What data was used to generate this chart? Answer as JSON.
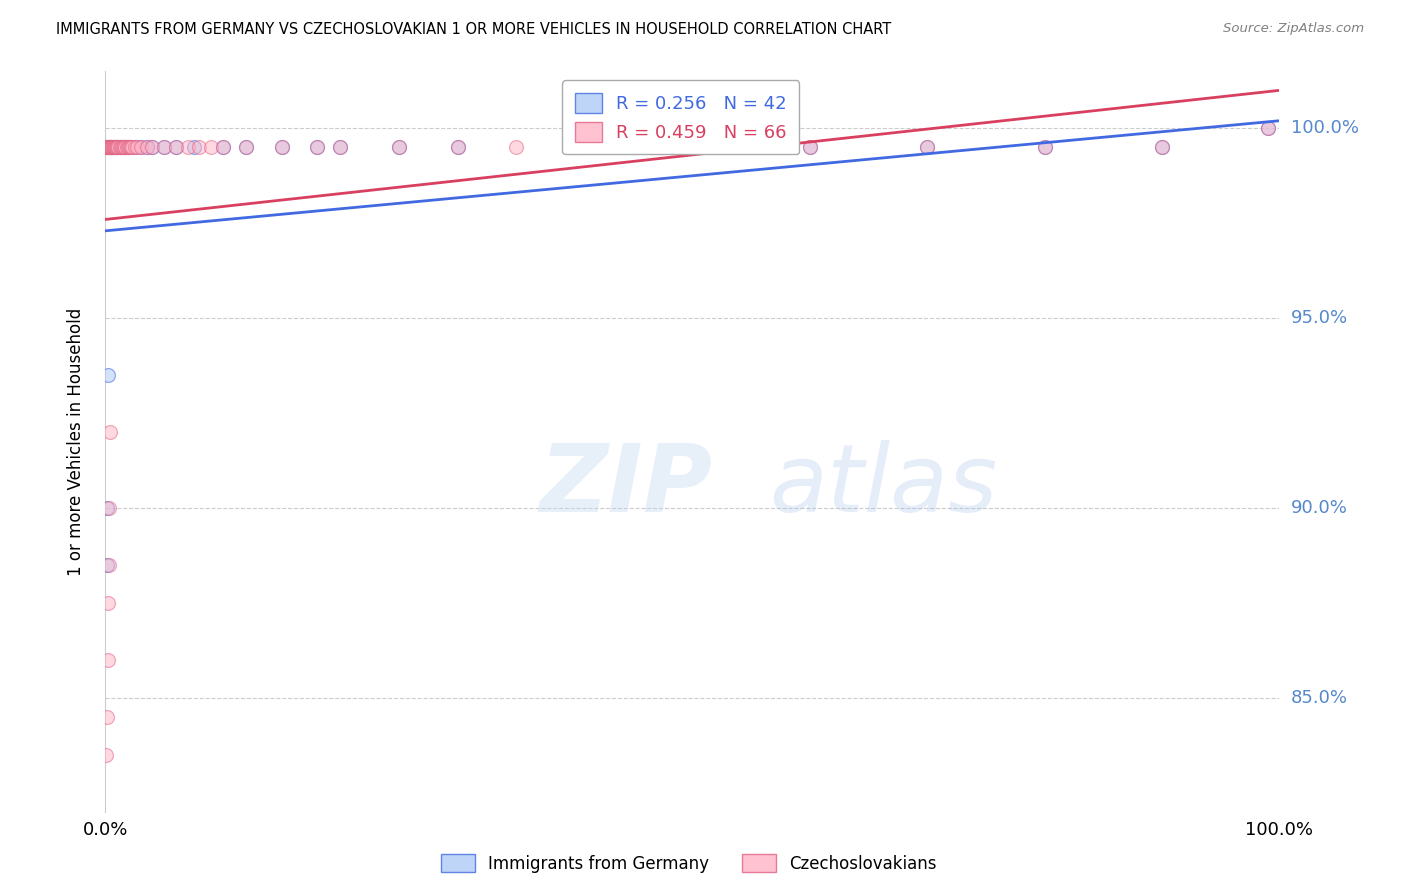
{
  "title": "IMMIGRANTS FROM GERMANY VS CZECHOSLOVAKIAN 1 OR MORE VEHICLES IN HOUSEHOLD CORRELATION CHART",
  "source_text": "Source: ZipAtlas.com",
  "ylabel": "1 or more Vehicles in Household",
  "xmin": 0.0,
  "xmax": 100.0,
  "ymin": 82.0,
  "ymax": 101.5,
  "yticks": [
    85,
    90,
    95,
    100
  ],
  "ytick_labels": [
    "85.0%",
    "90.0%",
    "95.0%",
    "100.0%"
  ],
  "legend_blue_R": "R = 0.256",
  "legend_blue_N": "N = 42",
  "legend_pink_R": "R = 0.459",
  "legend_pink_N": "N = 66",
  "legend_blue_label": "Immigrants from Germany",
  "legend_pink_label": "Czechoslovakians",
  "blue_scatter_color": "#AECBF5",
  "blue_edge_color": "#4169E1",
  "pink_scatter_color": "#FFB3C6",
  "pink_edge_color": "#E06080",
  "trendline_blue": "#4169E1",
  "trendline_pink": "#D94060",
  "axis_label_color": "#5588CC",
  "grid_color": "#cccccc",
  "blue_x": [
    0.2,
    0.3,
    0.4,
    0.5,
    0.6,
    0.7,
    0.8,
    0.9,
    1.0,
    1.1,
    1.2,
    1.3,
    1.4,
    1.5,
    1.6,
    1.7,
    1.8,
    2.0,
    2.5,
    3.0,
    3.5,
    4.0,
    5.0,
    6.0,
    7.5,
    10.0,
    12.0,
    15.0,
    18.0,
    20.0,
    25.0,
    30.0,
    40.0,
    50.0,
    60.0,
    70.0,
    80.0,
    90.0,
    99.0,
    0.1,
    0.15,
    0.25
  ],
  "blue_y": [
    99.5,
    99.5,
    99.5,
    99.5,
    99.5,
    99.5,
    99.5,
    99.5,
    99.5,
    99.5,
    99.5,
    99.5,
    99.5,
    99.5,
    99.5,
    99.5,
    99.5,
    99.5,
    99.5,
    99.5,
    99.5,
    99.5,
    99.5,
    99.5,
    99.5,
    99.5,
    99.5,
    99.5,
    99.5,
    99.5,
    99.5,
    99.5,
    99.5,
    99.5,
    99.5,
    99.5,
    99.5,
    99.5,
    100.0,
    88.5,
    90.0,
    93.5
  ],
  "pink_x": [
    0.05,
    0.1,
    0.15,
    0.2,
    0.25,
    0.3,
    0.35,
    0.4,
    0.45,
    0.5,
    0.55,
    0.6,
    0.65,
    0.7,
    0.75,
    0.8,
    0.85,
    0.9,
    0.95,
    1.0,
    1.1,
    1.2,
    1.3,
    1.4,
    1.5,
    1.6,
    1.7,
    1.8,
    1.9,
    2.0,
    2.1,
    2.2,
    2.3,
    2.5,
    2.7,
    3.0,
    3.5,
    4.0,
    5.0,
    6.0,
    7.0,
    8.0,
    9.0,
    10.0,
    12.0,
    15.0,
    18.0,
    20.0,
    25.0,
    30.0,
    35.0,
    40.0,
    45.0,
    50.0,
    60.0,
    70.0,
    80.0,
    90.0,
    99.0,
    0.08,
    0.12,
    0.18,
    0.22,
    0.28,
    0.32,
    0.38
  ],
  "pink_y": [
    99.5,
    99.5,
    99.5,
    99.5,
    99.5,
    99.5,
    99.5,
    99.5,
    99.5,
    99.5,
    99.5,
    99.5,
    99.5,
    99.5,
    99.5,
    99.5,
    99.5,
    99.5,
    99.5,
    99.5,
    99.5,
    99.5,
    99.5,
    99.5,
    99.5,
    99.5,
    99.5,
    99.5,
    99.5,
    99.5,
    99.5,
    99.5,
    99.5,
    99.5,
    99.5,
    99.5,
    99.5,
    99.5,
    99.5,
    99.5,
    99.5,
    99.5,
    99.5,
    99.5,
    99.5,
    99.5,
    99.5,
    99.5,
    99.5,
    99.5,
    99.5,
    99.5,
    99.5,
    99.5,
    99.5,
    99.5,
    99.5,
    99.5,
    100.0,
    83.5,
    84.5,
    86.0,
    87.5,
    88.5,
    90.0,
    92.0
  ]
}
